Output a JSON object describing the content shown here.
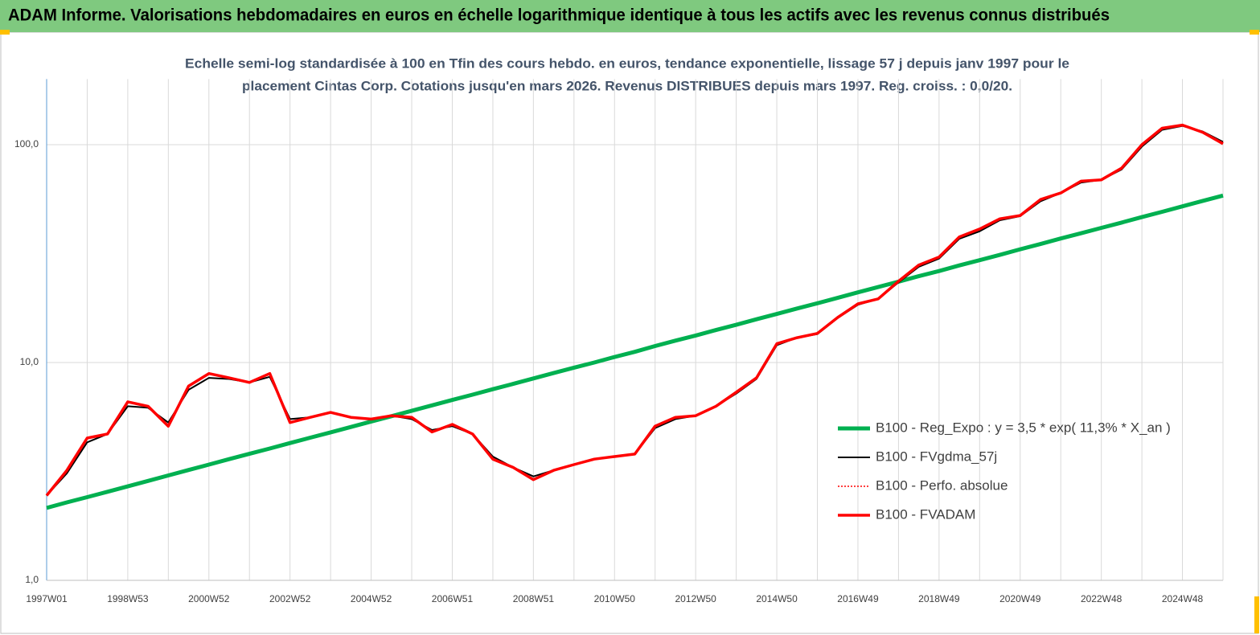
{
  "chart_data": {
    "type": "line",
    "title": "ADAM Informe. Valorisations hebdomadaires en euros en échelle logarithmique identique à tous les actifs avec les revenus connus distribués",
    "subtitle": [
      "Echelle semi-log standardisée à 100 en Tfin des cours hebdo. en euros, tendance exponentielle, lissage 57 j depuis janv 1997 pour le",
      "placement Cintas Corp. Cotations jusqu'en mars 2026. Revenus DISTRIBUES depuis mars 1997. Reg. croiss. : 0,0/20."
    ],
    "log_scale": true,
    "grid": true,
    "legend": "right",
    "ylim": [
      1,
      200
    ],
    "yticks": [
      {
        "value": 1,
        "label": "1,0"
      },
      {
        "value": 10,
        "label": "10,0"
      },
      {
        "value": 100,
        "label": "100,0"
      }
    ],
    "categories": [
      "1997W01",
      null,
      null,
      null,
      "1998W53",
      null,
      null,
      null,
      "2000W52",
      null,
      null,
      null,
      "2002W52",
      null,
      null,
      null,
      "2004W52",
      null,
      null,
      null,
      "2006W51",
      null,
      null,
      null,
      "2008W51",
      null,
      null,
      null,
      "2010W50",
      null,
      null,
      null,
      "2012W50",
      null,
      null,
      null,
      "2014W50",
      null,
      null,
      null,
      "2016W49",
      null,
      null,
      null,
      "2018W49",
      null,
      null,
      null,
      "2020W49",
      null,
      null,
      null,
      "2022W48",
      null,
      null,
      null,
      "2024W48",
      null,
      null
    ],
    "series": [
      {
        "name": "B100 - Reg_Expo : y = 3,5 * exp( 11,3% *  X_an )",
        "color": "#00b050",
        "width": 5,
        "dash": "none",
        "values": [
          2.15,
          2.28,
          2.41,
          2.55,
          2.7,
          2.86,
          3.03,
          3.21,
          3.4,
          3.6,
          3.81,
          4.03,
          4.27,
          4.52,
          4.78,
          5.06,
          5.36,
          5.67,
          6.0,
          6.36,
          6.73,
          7.12,
          7.54,
          7.98,
          8.45,
          8.95,
          9.47,
          10.0,
          10.6,
          11.2,
          11.9,
          12.6,
          13.3,
          14.1,
          14.9,
          15.8,
          16.7,
          17.7,
          18.7,
          19.8,
          21.0,
          22.2,
          23.5,
          24.9,
          26.3,
          27.9,
          29.5,
          31.2,
          33.1,
          35.0,
          37.1,
          39.2,
          41.5,
          43.9,
          46.5,
          49.2,
          52.1,
          55.2,
          58.4
        ]
      },
      {
        "name": "B100 - FVgdma_57j",
        "color": "#000000",
        "width": 2,
        "dash": "none",
        "values": [
          2.45,
          3.1,
          4.3,
          4.7,
          6.3,
          6.2,
          5.3,
          7.5,
          8.5,
          8.4,
          8.1,
          8.6,
          5.5,
          5.6,
          5.9,
          5.6,
          5.5,
          5.7,
          5.5,
          4.9,
          5.1,
          4.7,
          3.7,
          3.3,
          3.0,
          3.2,
          3.4,
          3.6,
          3.7,
          3.8,
          5.0,
          5.5,
          5.7,
          6.3,
          7.2,
          8.4,
          12.0,
          13.0,
          13.5,
          16.0,
          18.4,
          19.6,
          23.3,
          27.5,
          30.0,
          37.0,
          40.0,
          45.0,
          47.0,
          55.0,
          60.0,
          67.0,
          69.0,
          77.0,
          98.0,
          117.0,
          122.0,
          115.0,
          103.0
        ]
      },
      {
        "name": "B100 - Perfo. absolue",
        "color": "#ff0000",
        "width": 1.5,
        "dash": "2 2",
        "values": [
          2.45,
          3.2,
          4.5,
          4.7,
          6.6,
          6.3,
          5.1,
          7.8,
          8.9,
          8.5,
          8.1,
          8.9,
          5.3,
          5.6,
          5.9,
          5.6,
          5.5,
          5.7,
          5.6,
          4.8,
          5.2,
          4.7,
          3.6,
          3.3,
          2.9,
          3.2,
          3.4,
          3.6,
          3.7,
          3.8,
          5.1,
          5.6,
          5.7,
          6.3,
          7.3,
          8.5,
          12.2,
          13.0,
          13.6,
          16.1,
          18.6,
          19.6,
          23.6,
          28.0,
          30.5,
          37.7,
          41.0,
          45.7,
          47.3,
          56.0,
          60.0,
          68.0,
          69.0,
          78.0,
          100.0,
          119.0,
          123.0,
          114.0,
          101.0
        ]
      },
      {
        "name": "B100 - FVADAM",
        "color": "#ff0000",
        "width": 3.5,
        "dash": "none",
        "values": [
          2.45,
          3.2,
          4.5,
          4.7,
          6.6,
          6.3,
          5.1,
          7.8,
          8.9,
          8.5,
          8.1,
          8.9,
          5.3,
          5.6,
          5.9,
          5.6,
          5.5,
          5.7,
          5.6,
          4.8,
          5.2,
          4.7,
          3.6,
          3.3,
          2.9,
          3.2,
          3.4,
          3.6,
          3.7,
          3.8,
          5.1,
          5.6,
          5.7,
          6.3,
          7.3,
          8.5,
          12.2,
          13.0,
          13.6,
          16.1,
          18.6,
          19.6,
          23.6,
          28.0,
          30.5,
          37.7,
          41.0,
          45.7,
          47.3,
          56.0,
          60.0,
          68.0,
          69.0,
          78.0,
          100.0,
          119.0,
          123.0,
          114.0,
          101.0
        ]
      }
    ]
  }
}
